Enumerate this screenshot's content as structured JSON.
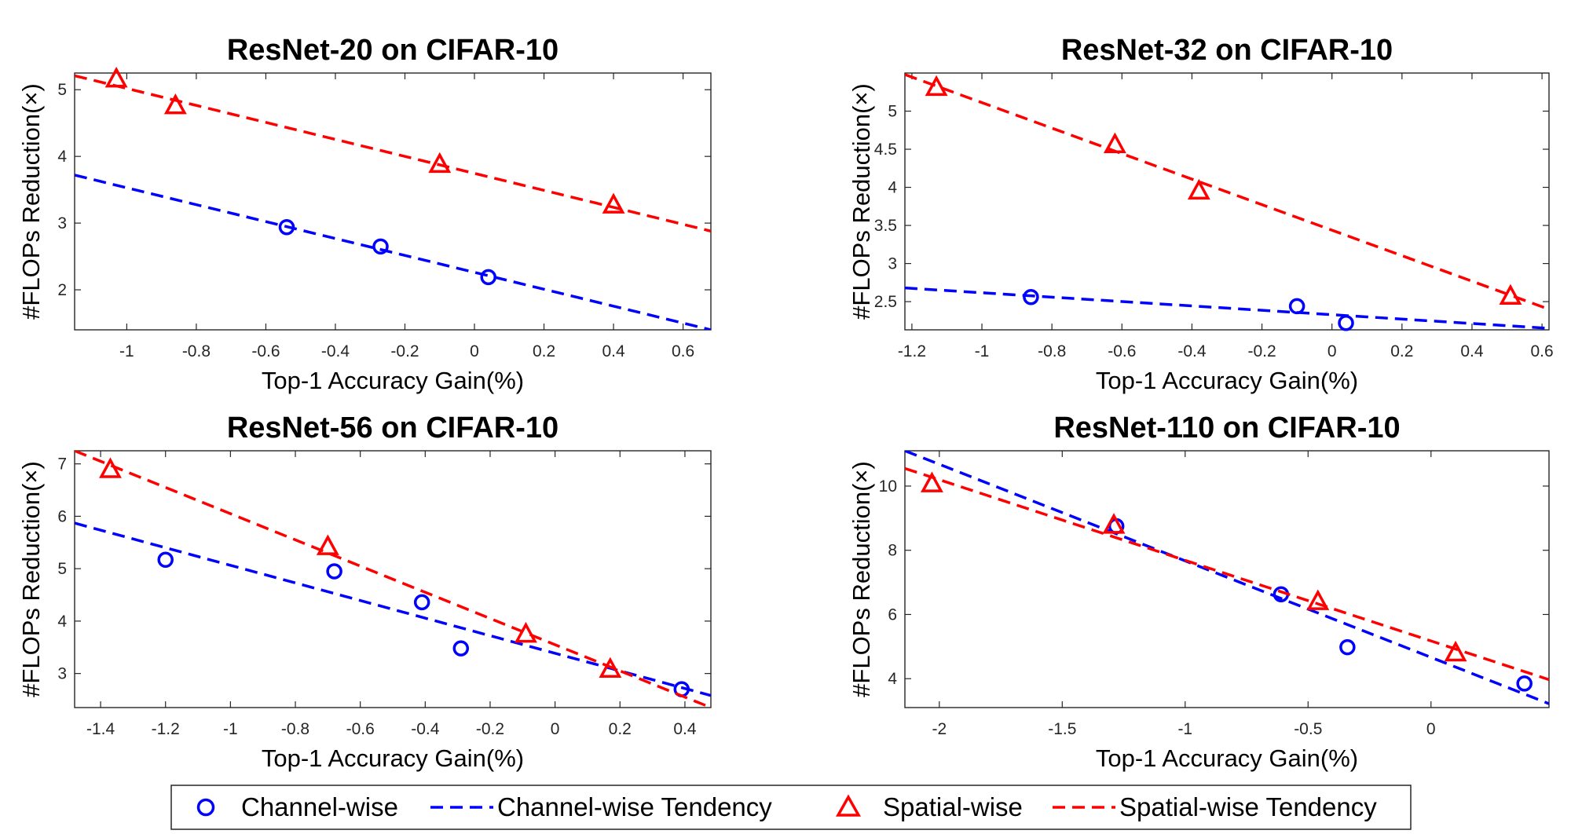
{
  "colors": {
    "channel": "#0000ff",
    "spatial": "#ff0000",
    "axis": "#262626"
  },
  "y_axis_label": "#FLOPs Reduction(×)",
  "x_axis_label": "Top-1 Accuracy Gain(%)",
  "legend": {
    "channel_points": "Channel-wise",
    "channel_trend": "Channel-wise Tendency",
    "spatial_points": "Spatial-wise",
    "spatial_trend": "Spatial-wise Tendency"
  },
  "chart_data": [
    {
      "type": "scatter",
      "title": "ResNet-20 on CIFAR-10",
      "xlabel": "Top-1 Accuracy Gain(%)",
      "ylabel": "#FLOPs Reduction(×)",
      "xlim": [
        -1.15,
        0.68
      ],
      "ylim": [
        1.4,
        5.25
      ],
      "xticks": [
        -1,
        -0.8,
        -0.6,
        -0.4,
        -0.2,
        0,
        0.2,
        0.4,
        0.6
      ],
      "yticks": [
        2,
        3,
        4,
        5
      ],
      "grid": false,
      "series": [
        {
          "name": "Channel-wise",
          "marker": "circle",
          "points": [
            [
              -0.54,
              2.94
            ],
            [
              -0.27,
              2.65
            ],
            [
              0.04,
              2.19
            ]
          ],
          "trend": {
            "name": "Channel-wise Tendency",
            "line": [
              [
                -1.15,
                3.72
              ],
              [
                0.68,
                1.4
              ]
            ]
          }
        },
        {
          "name": "Spatial-wise",
          "marker": "triangle",
          "points": [
            [
              -1.03,
              5.16
            ],
            [
              -0.86,
              4.76
            ],
            [
              -0.1,
              3.88
            ],
            [
              0.4,
              3.27
            ]
          ],
          "trend": {
            "name": "Spatial-wise Tendency",
            "line": [
              [
                -1.15,
                5.21
              ],
              [
                0.68,
                2.88
              ]
            ]
          }
        }
      ]
    },
    {
      "type": "scatter",
      "title": "ResNet-32 on CIFAR-10",
      "xlabel": "Top-1 Accuracy Gain(%)",
      "ylabel": "#FLOPs Reduction(×)",
      "xlim": [
        -1.22,
        0.62
      ],
      "ylim": [
        2.13,
        5.5
      ],
      "xticks": [
        -1.2,
        -1,
        -0.8,
        -0.6,
        -0.4,
        -0.2,
        0,
        0.2,
        0.4,
        0.6
      ],
      "yticks": [
        2.5,
        3,
        3.5,
        4,
        4.5,
        5
      ],
      "grid": false,
      "series": [
        {
          "name": "Channel-wise",
          "marker": "circle",
          "points": [
            [
              -0.86,
              2.56
            ],
            [
              -0.1,
              2.44
            ],
            [
              0.04,
              2.22
            ]
          ],
          "trend": {
            "name": "Channel-wise Tendency",
            "line": [
              [
                -1.22,
                2.68
              ],
              [
                0.62,
                2.15
              ]
            ]
          }
        },
        {
          "name": "Spatial-wise",
          "marker": "triangle",
          "points": [
            [
              -1.13,
              5.31
            ],
            [
              -0.62,
              4.56
            ],
            [
              -0.38,
              3.95
            ],
            [
              0.51,
              2.57
            ]
          ],
          "trend": {
            "name": "Spatial-wise Tendency",
            "line": [
              [
                -1.22,
                5.48
              ],
              [
                0.62,
                2.4
              ]
            ]
          }
        }
      ]
    },
    {
      "type": "scatter",
      "title": "ResNet-56 on CIFAR-10",
      "xlabel": "Top-1 Accuracy Gain(%)",
      "ylabel": "#FLOPs Reduction(×)",
      "xlim": [
        -1.48,
        0.48
      ],
      "ylim": [
        2.35,
        7.25
      ],
      "xticks": [
        -1.4,
        -1.2,
        -1,
        -0.8,
        -0.6,
        -0.4,
        -0.2,
        0,
        0.2,
        0.4
      ],
      "yticks": [
        3,
        4,
        5,
        6,
        7
      ],
      "grid": false,
      "series": [
        {
          "name": "Channel-wise",
          "marker": "circle",
          "points": [
            [
              -1.2,
              5.17
            ],
            [
              -0.68,
              4.95
            ],
            [
              -0.41,
              4.36
            ],
            [
              -0.29,
              3.48
            ],
            [
              0.39,
              2.7
            ]
          ],
          "trend": {
            "name": "Channel-wise Tendency",
            "line": [
              [
                -1.48,
                5.87
              ],
              [
                0.48,
                2.58
              ]
            ]
          }
        },
        {
          "name": "Spatial-wise",
          "marker": "triangle",
          "points": [
            [
              -1.37,
              6.89
            ],
            [
              -0.7,
              5.42
            ],
            [
              -0.09,
              3.75
            ],
            [
              0.17,
              3.08
            ]
          ],
          "trend": {
            "name": "Spatial-wise Tendency",
            "line": [
              [
                -1.48,
                7.25
              ],
              [
                0.48,
                2.35
              ]
            ]
          }
        }
      ]
    },
    {
      "type": "scatter",
      "title": "ResNet-110 on CIFAR-10",
      "xlabel": "Top-1 Accuracy Gain(%)",
      "ylabel": "#FLOPs Reduction(×)",
      "xlim": [
        -2.14,
        0.48
      ],
      "ylim": [
        3.1,
        11.1
      ],
      "xticks": [
        -2,
        -1.5,
        -1,
        -0.5,
        0
      ],
      "yticks": [
        4,
        6,
        8,
        10
      ],
      "grid": false,
      "series": [
        {
          "name": "Channel-wise",
          "marker": "circle",
          "points": [
            [
              -1.28,
              8.75
            ],
            [
              -0.61,
              6.63
            ],
            [
              -0.34,
              4.98
            ],
            [
              0.38,
              3.85
            ]
          ],
          "trend": {
            "name": "Channel-wise Tendency",
            "line": [
              [
                -2.14,
                11.1
              ],
              [
                0.48,
                3.22
              ]
            ]
          }
        },
        {
          "name": "Spatial-wise",
          "marker": "triangle",
          "points": [
            [
              -2.03,
              10.07
            ],
            [
              -1.29,
              8.78
            ],
            [
              -0.46,
              6.4
            ],
            [
              0.1,
              4.8
            ]
          ],
          "trend": {
            "name": "Spatial-wise Tendency",
            "line": [
              [
                -2.14,
                10.55
              ],
              [
                0.48,
                3.97
              ]
            ]
          }
        }
      ]
    }
  ]
}
